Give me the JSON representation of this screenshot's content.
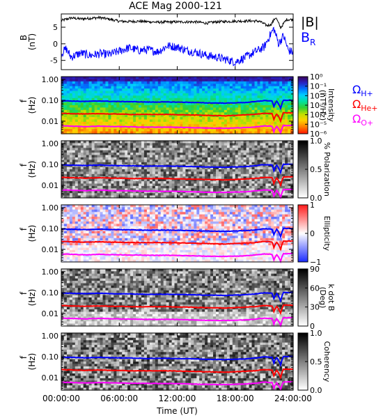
{
  "chart_data": [
    {
      "type": "line",
      "title": "ACE Mag 2000-121",
      "ylabel": "B",
      "yunit": "(nT)",
      "ylim": [
        -7.8,
        9
      ],
      "yticks": [
        {
          "v": 5,
          "label": "5"
        },
        {
          "v": 0,
          "label": "0"
        },
        {
          "v": -5,
          "label": "-5"
        }
      ],
      "series": [
        {
          "name": "|B|",
          "color": "#000000",
          "key": [
            [
              0,
              7
            ],
            [
              1,
              7.8
            ],
            [
              2,
              7.5
            ],
            [
              4,
              7.9
            ],
            [
              5,
              7.4
            ],
            [
              6,
              6.8
            ],
            [
              7,
              6.7
            ],
            [
              8,
              6.8
            ],
            [
              10,
              6.5
            ],
            [
              12,
              6.6
            ],
            [
              14,
              6.6
            ],
            [
              15,
              6.2
            ],
            [
              16,
              6.6
            ],
            [
              18,
              6.8
            ],
            [
              19.5,
              6.9
            ],
            [
              20.5,
              6.8
            ],
            [
              21.3,
              5.5
            ],
            [
              21.7,
              5.8
            ],
            [
              22.2,
              8
            ],
            [
              22.7,
              4.8
            ],
            [
              23.3,
              7.3
            ],
            [
              24,
              7.3
            ]
          ],
          "jitter": 0.4
        },
        {
          "name": "B",
          "subscript": "R",
          "color": "#0000ff",
          "key": [
            [
              0,
              -3
            ],
            [
              0.5,
              -1.5
            ],
            [
              1,
              -4
            ],
            [
              2,
              -2.8
            ],
            [
              3,
              -3.5
            ],
            [
              4,
              -3
            ],
            [
              5,
              -3.2
            ],
            [
              6,
              -2.2
            ],
            [
              7,
              -1.2
            ],
            [
              8,
              -2
            ],
            [
              9,
              -1.8
            ],
            [
              10,
              -2.4
            ],
            [
              11,
              -0.6
            ],
            [
              12,
              -1
            ],
            [
              13,
              -2
            ],
            [
              14,
              -2.6
            ],
            [
              15,
              -3.5
            ],
            [
              16,
              -4
            ],
            [
              17,
              -4.7
            ],
            [
              18,
              -5.5
            ],
            [
              19,
              -4.2
            ],
            [
              20,
              -2.5
            ],
            [
              21,
              -1
            ],
            [
              21.5,
              2
            ],
            [
              22,
              4.6
            ],
            [
              22.5,
              0
            ],
            [
              23,
              2.5
            ],
            [
              23.5,
              -2
            ],
            [
              24,
              -2.6
            ]
          ],
          "jitter": 1.3
        }
      ]
    },
    {
      "type": "heatmap",
      "ylabel": "f",
      "yunit": "(Hz)",
      "colorbar": {
        "title": "Intensity",
        "unit": "(nT²/Hz)",
        "ticks": [
          "10⁰",
          "10⁻¹",
          "10⁻²",
          "10⁻³",
          "10⁻⁴",
          "10⁻⁵",
          "10⁻⁶"
        ]
      },
      "legend": [
        {
          "symbol": "Ω",
          "sub": "H+",
          "color": "#0000ff"
        },
        {
          "symbol": "Ω",
          "sub": "He+",
          "color": "#ff0000"
        },
        {
          "symbol": "Ω",
          "sub": "O+",
          "color": "#ff00ff"
        }
      ]
    },
    {
      "type": "heatmap",
      "ylabel": "f",
      "yunit": "(Hz)",
      "colorbar": {
        "title": "% Polarization",
        "unit": "",
        "ticks": [
          "1.0",
          "0.5",
          "0.0"
        ]
      }
    },
    {
      "type": "heatmap",
      "ylabel": "f",
      "yunit": "(Hz)",
      "colorbar": {
        "title": "Ellipticity",
        "unit": "",
        "ticks": [
          "1",
          "0",
          "−1"
        ]
      }
    },
    {
      "type": "heatmap",
      "ylabel": "f",
      "yunit": "(Hz)",
      "colorbar": {
        "title": "k dot B",
        "unit": "(Deg)",
        "ticks": [
          "90",
          "60",
          "30",
          "0"
        ]
      }
    },
    {
      "type": "heatmap",
      "ylabel": "f",
      "yunit": "(Hz)",
      "colorbar": {
        "title": "Coherency",
        "unit": "",
        "ticks": [
          "1.0",
          "0.5",
          "0.0"
        ]
      }
    }
  ],
  "frequency_axis": {
    "ylim": [
      0.0025,
      1.35
    ],
    "scale": "log",
    "ticks": [
      {
        "v": 1,
        "label": "1.00"
      },
      {
        "v": 0.1,
        "label": "0.10"
      },
      {
        "v": 0.01,
        "label": "0.01"
      }
    ]
  },
  "gyrofrequency_lines": [
    {
      "name": "H+",
      "color": "#0000ff",
      "key": [
        [
          0,
          0.095
        ],
        [
          1,
          0.092
        ],
        [
          2.5,
          0.088
        ],
        [
          4,
          0.093
        ],
        [
          5,
          0.089
        ],
        [
          6,
          0.087
        ],
        [
          7,
          0.086
        ],
        [
          9,
          0.082
        ],
        [
          11,
          0.083
        ],
        [
          13,
          0.08
        ],
        [
          15,
          0.075
        ],
        [
          17,
          0.073
        ],
        [
          19,
          0.078
        ],
        [
          20,
          0.085
        ],
        [
          21,
          0.097
        ],
        [
          21.8,
          0.093
        ],
        [
          22,
          0.05
        ],
        [
          22.3,
          0.09
        ],
        [
          22.7,
          0.04
        ],
        [
          23,
          0.1
        ],
        [
          24,
          0.1
        ]
      ],
      "jitter": 0.025
    },
    {
      "name": "He+",
      "color": "#ff0000",
      "key": [
        [
          0,
          0.024
        ],
        [
          1,
          0.023
        ],
        [
          2.5,
          0.022
        ],
        [
          4,
          0.023
        ],
        [
          5,
          0.022
        ],
        [
          6,
          0.022
        ],
        [
          7,
          0.021
        ],
        [
          9,
          0.021
        ],
        [
          11,
          0.021
        ],
        [
          13,
          0.02
        ],
        [
          15,
          0.019
        ],
        [
          17,
          0.018
        ],
        [
          19,
          0.02
        ],
        [
          20,
          0.021
        ],
        [
          21,
          0.024
        ],
        [
          21.8,
          0.023
        ],
        [
          22,
          0.012
        ],
        [
          22.3,
          0.022
        ],
        [
          22.7,
          0.01
        ],
        [
          23,
          0.025
        ],
        [
          24,
          0.025
        ]
      ],
      "jitter": 0.025
    },
    {
      "name": "O+",
      "color": "#ff00ff",
      "key": [
        [
          0,
          0.006
        ],
        [
          1,
          0.0058
        ],
        [
          2.5,
          0.0055
        ],
        [
          4,
          0.0058
        ],
        [
          5,
          0.0056
        ],
        [
          6,
          0.0055
        ],
        [
          7,
          0.0054
        ],
        [
          9,
          0.0052
        ],
        [
          11,
          0.0052
        ],
        [
          13,
          0.005
        ],
        [
          15,
          0.0047
        ],
        [
          17,
          0.0046
        ],
        [
          19,
          0.0049
        ],
        [
          20,
          0.0053
        ],
        [
          21,
          0.006
        ],
        [
          21.8,
          0.0058
        ],
        [
          22,
          0.0031
        ],
        [
          22.3,
          0.0056
        ],
        [
          22.7,
          0.0027
        ],
        [
          23,
          0.0062
        ],
        [
          24,
          0.0062
        ]
      ],
      "jitter": 0.025
    }
  ],
  "time_axis": {
    "label": "Time (UT)",
    "range_hours": [
      0,
      24
    ],
    "ticks": [
      {
        "h": 0,
        "label": "00:00:00"
      },
      {
        "h": 6,
        "label": "06:00:00"
      },
      {
        "h": 12,
        "label": "12:00:00"
      },
      {
        "h": 18,
        "label": "18:00:00"
      },
      {
        "h": 24,
        "label": "24:00:00"
      }
    ]
  },
  "colors": {
    "intensity_scale": [
      "#3b004f",
      "#2b1fbf",
      "#0070ff",
      "#00d0ff",
      "#00e0a0",
      "#30d030",
      "#c0e000",
      "#ffd000",
      "#ff8000",
      "#ff2000"
    ],
    "ellipticity_neg": "#2030ff",
    "ellipticity_pos": "#ff2020"
  }
}
